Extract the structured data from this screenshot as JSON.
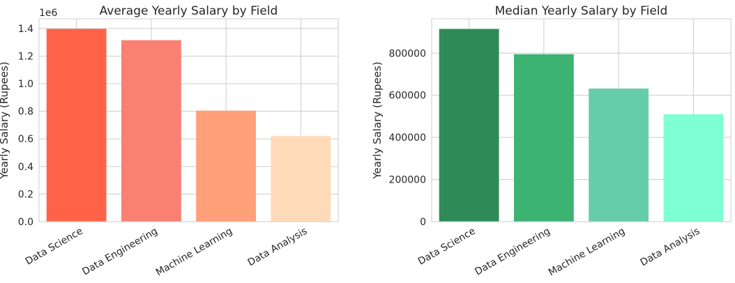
{
  "chart_data": [
    {
      "type": "bar",
      "title": "Average Yearly Salary by Field",
      "ylabel": "Yearly Salary (Rupees)",
      "xlabel": "",
      "categories": [
        "Data Science",
        "Data Engineering",
        "Machine Learning",
        "Data Analysis"
      ],
      "values": [
        1397000,
        1315000,
        805000,
        620000
      ],
      "colors": [
        "#ff6347",
        "#fa8072",
        "#ffa07a",
        "#ffdab9"
      ],
      "ylim": [
        0,
        1470000
      ],
      "yticks": [
        0,
        200000,
        400000,
        600000,
        800000,
        1000000,
        1200000,
        1400000
      ],
      "ytick_labels": [
        "0.0",
        "0.2",
        "0.4",
        "0.6",
        "0.8",
        "1.0",
        "1.2",
        "1.4"
      ],
      "offset_label": "1e6",
      "grid": true
    },
    {
      "type": "bar",
      "title": "Median Yearly Salary by Field",
      "ylabel": "Yearly Salary (Rupees)",
      "xlabel": "",
      "categories": [
        "Data Science",
        "Data Engineering",
        "Machine Learning",
        "Data Analysis"
      ],
      "values": [
        915000,
        795000,
        632000,
        510000
      ],
      "colors": [
        "#2e8b57",
        "#3cb371",
        "#66cdaa",
        "#7fffd4"
      ],
      "ylim": [
        0,
        963000
      ],
      "yticks": [
        0,
        200000,
        400000,
        600000,
        800000
      ],
      "ytick_labels": [
        "0",
        "200000",
        "400000",
        "600000",
        "800000"
      ],
      "offset_label": "",
      "grid": true
    }
  ]
}
